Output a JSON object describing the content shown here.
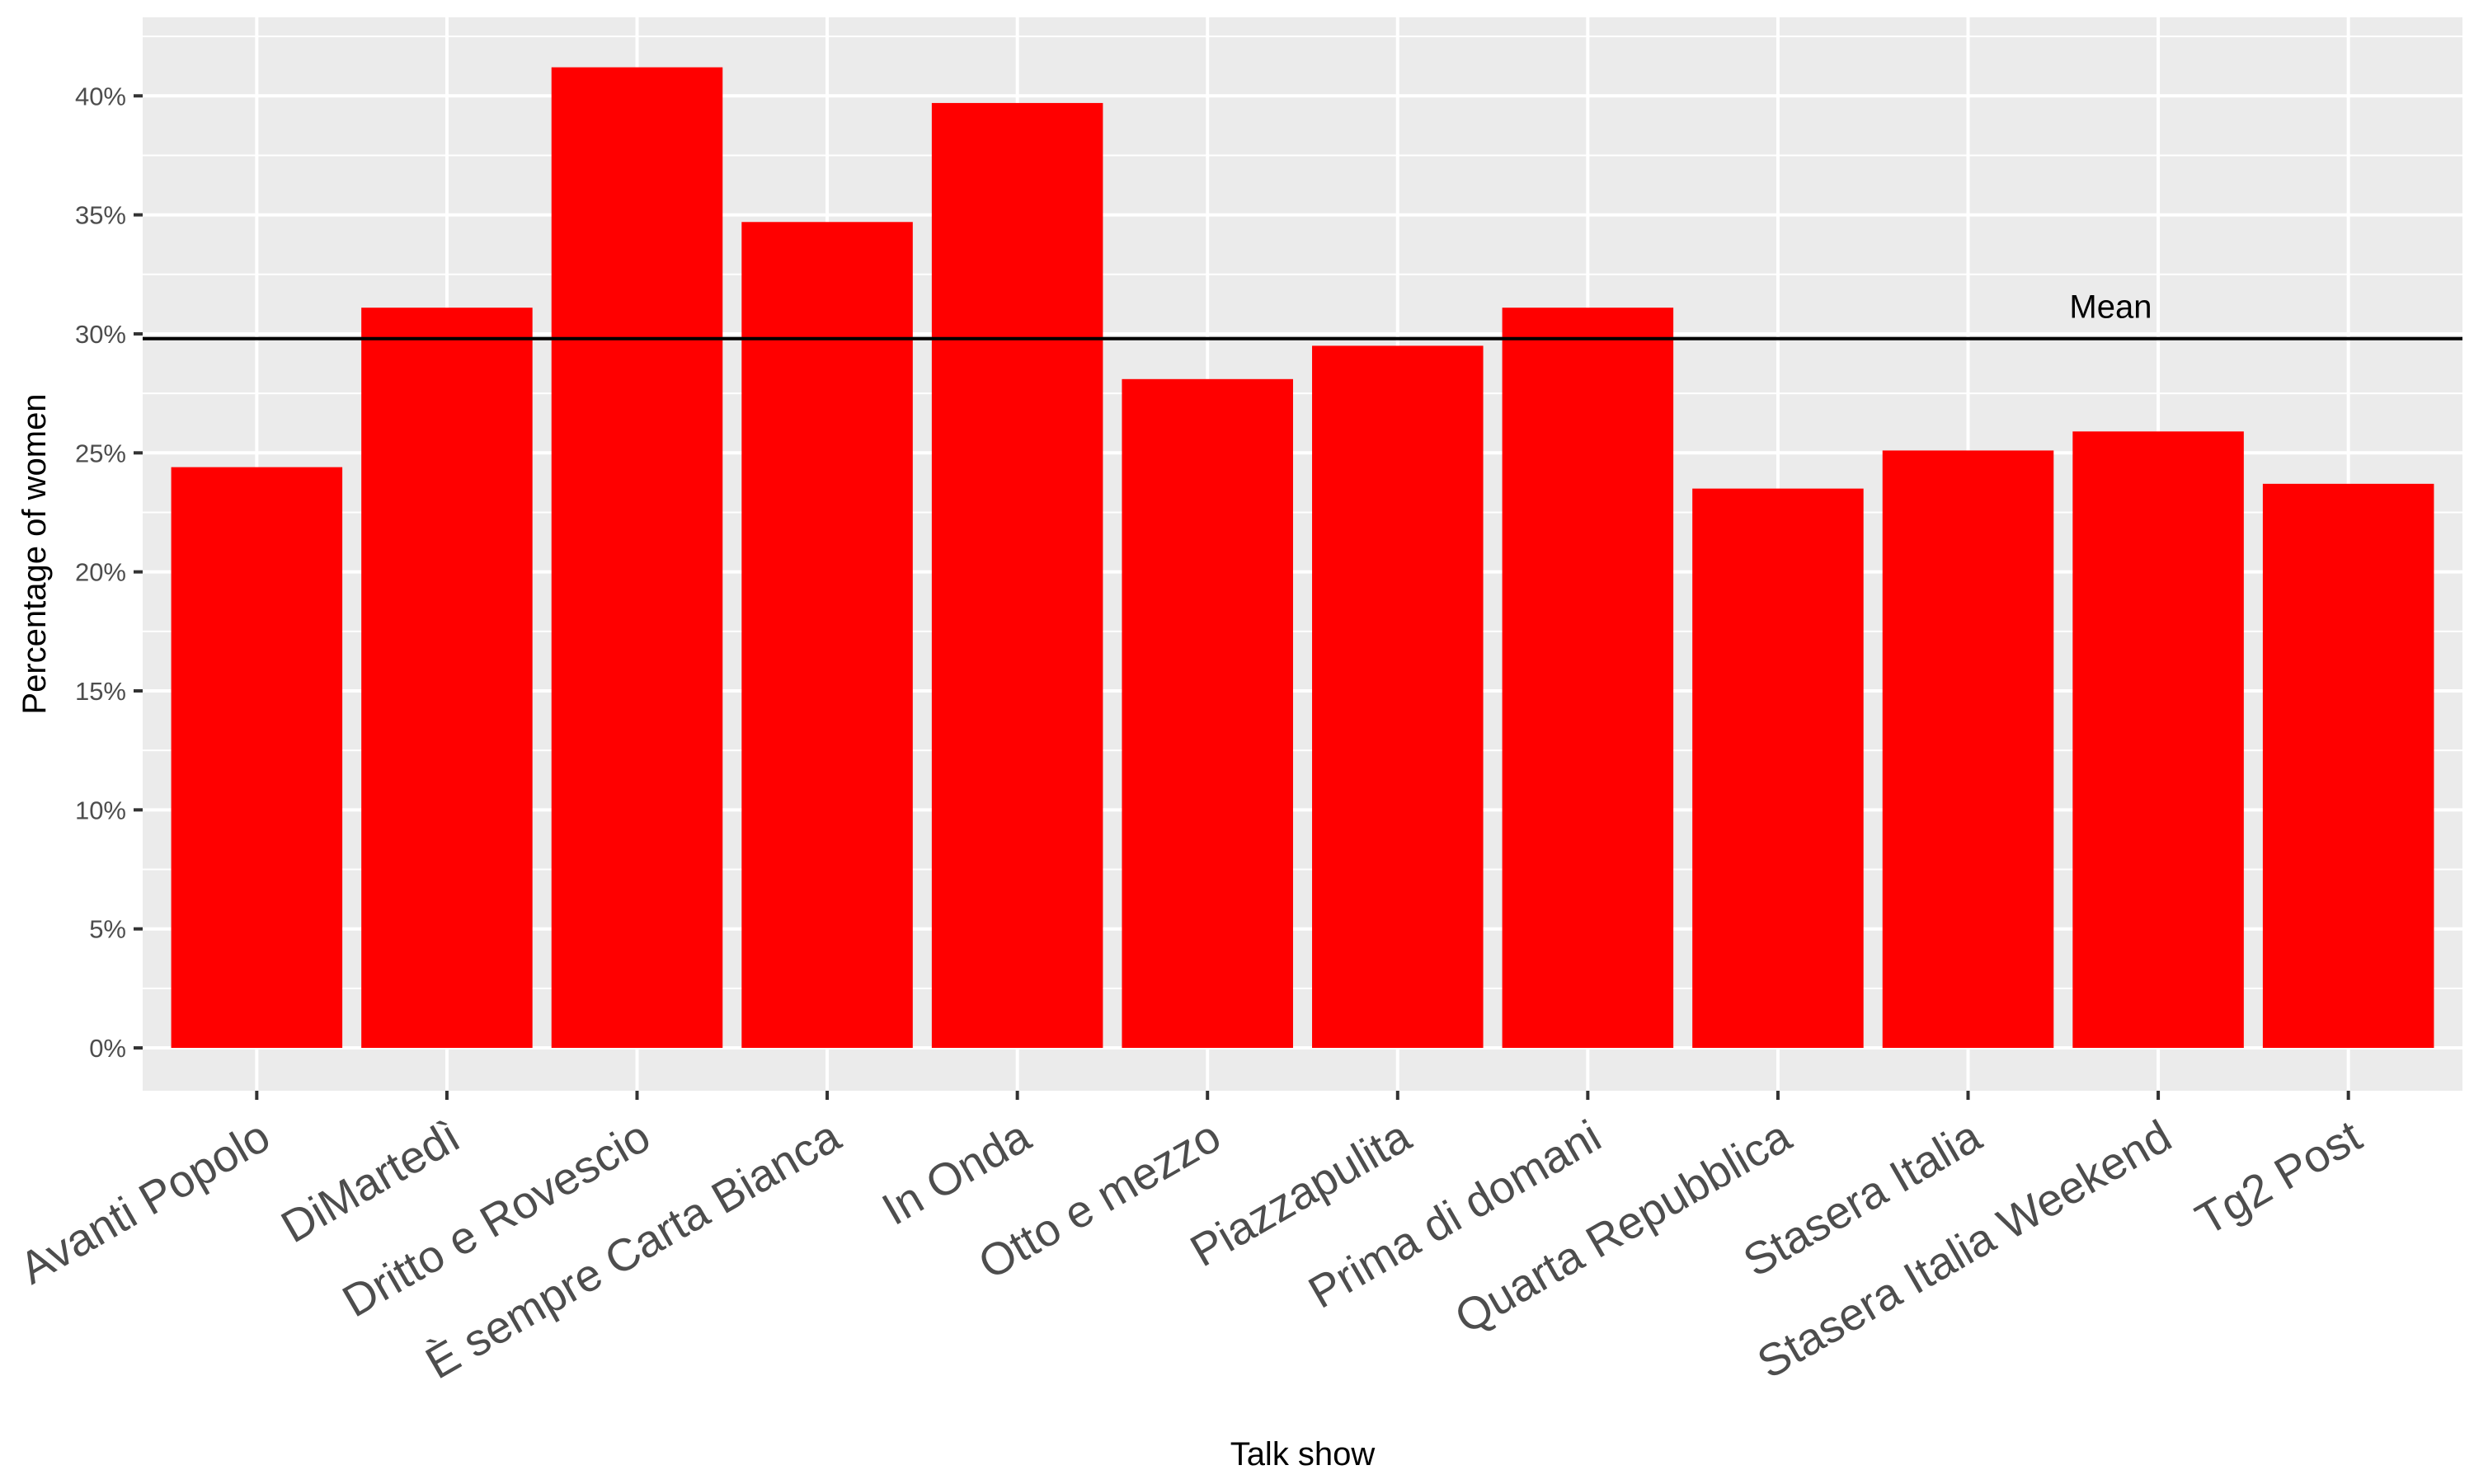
{
  "chart_data": {
    "type": "bar",
    "categories": [
      "Avanti Popolo",
      "DiMartedì",
      "Dritto e Rovescio",
      "È sempre Carta Bianca",
      "In Onda",
      "Otto e mezzo",
      "Piazzapulita",
      "Prima di domani",
      "Quarta Repubblica",
      "Stasera Italia",
      "Stasera Italia Weekend",
      "Tg2 Post"
    ],
    "values": [
      24.4,
      31.1,
      41.2,
      34.7,
      39.7,
      28.1,
      29.5,
      31.1,
      23.5,
      25.1,
      25.9,
      23.7
    ],
    "xlabel": "Talk show",
    "ylabel": "Percentage of women",
    "ylim": [
      -1.8,
      43.3
    ],
    "yticks": [
      0,
      5,
      10,
      15,
      20,
      25,
      30,
      35,
      40
    ],
    "ytick_labels": [
      "0%",
      "5%",
      "10%",
      "15%",
      "20%",
      "25%",
      "30%",
      "35%",
      "40%"
    ],
    "grid": true,
    "bar_color": "#FF0000",
    "panel_background": "#EBEBEB",
    "reference_line": {
      "label": "Mean",
      "value": 29.8,
      "color": "#000000"
    }
  }
}
